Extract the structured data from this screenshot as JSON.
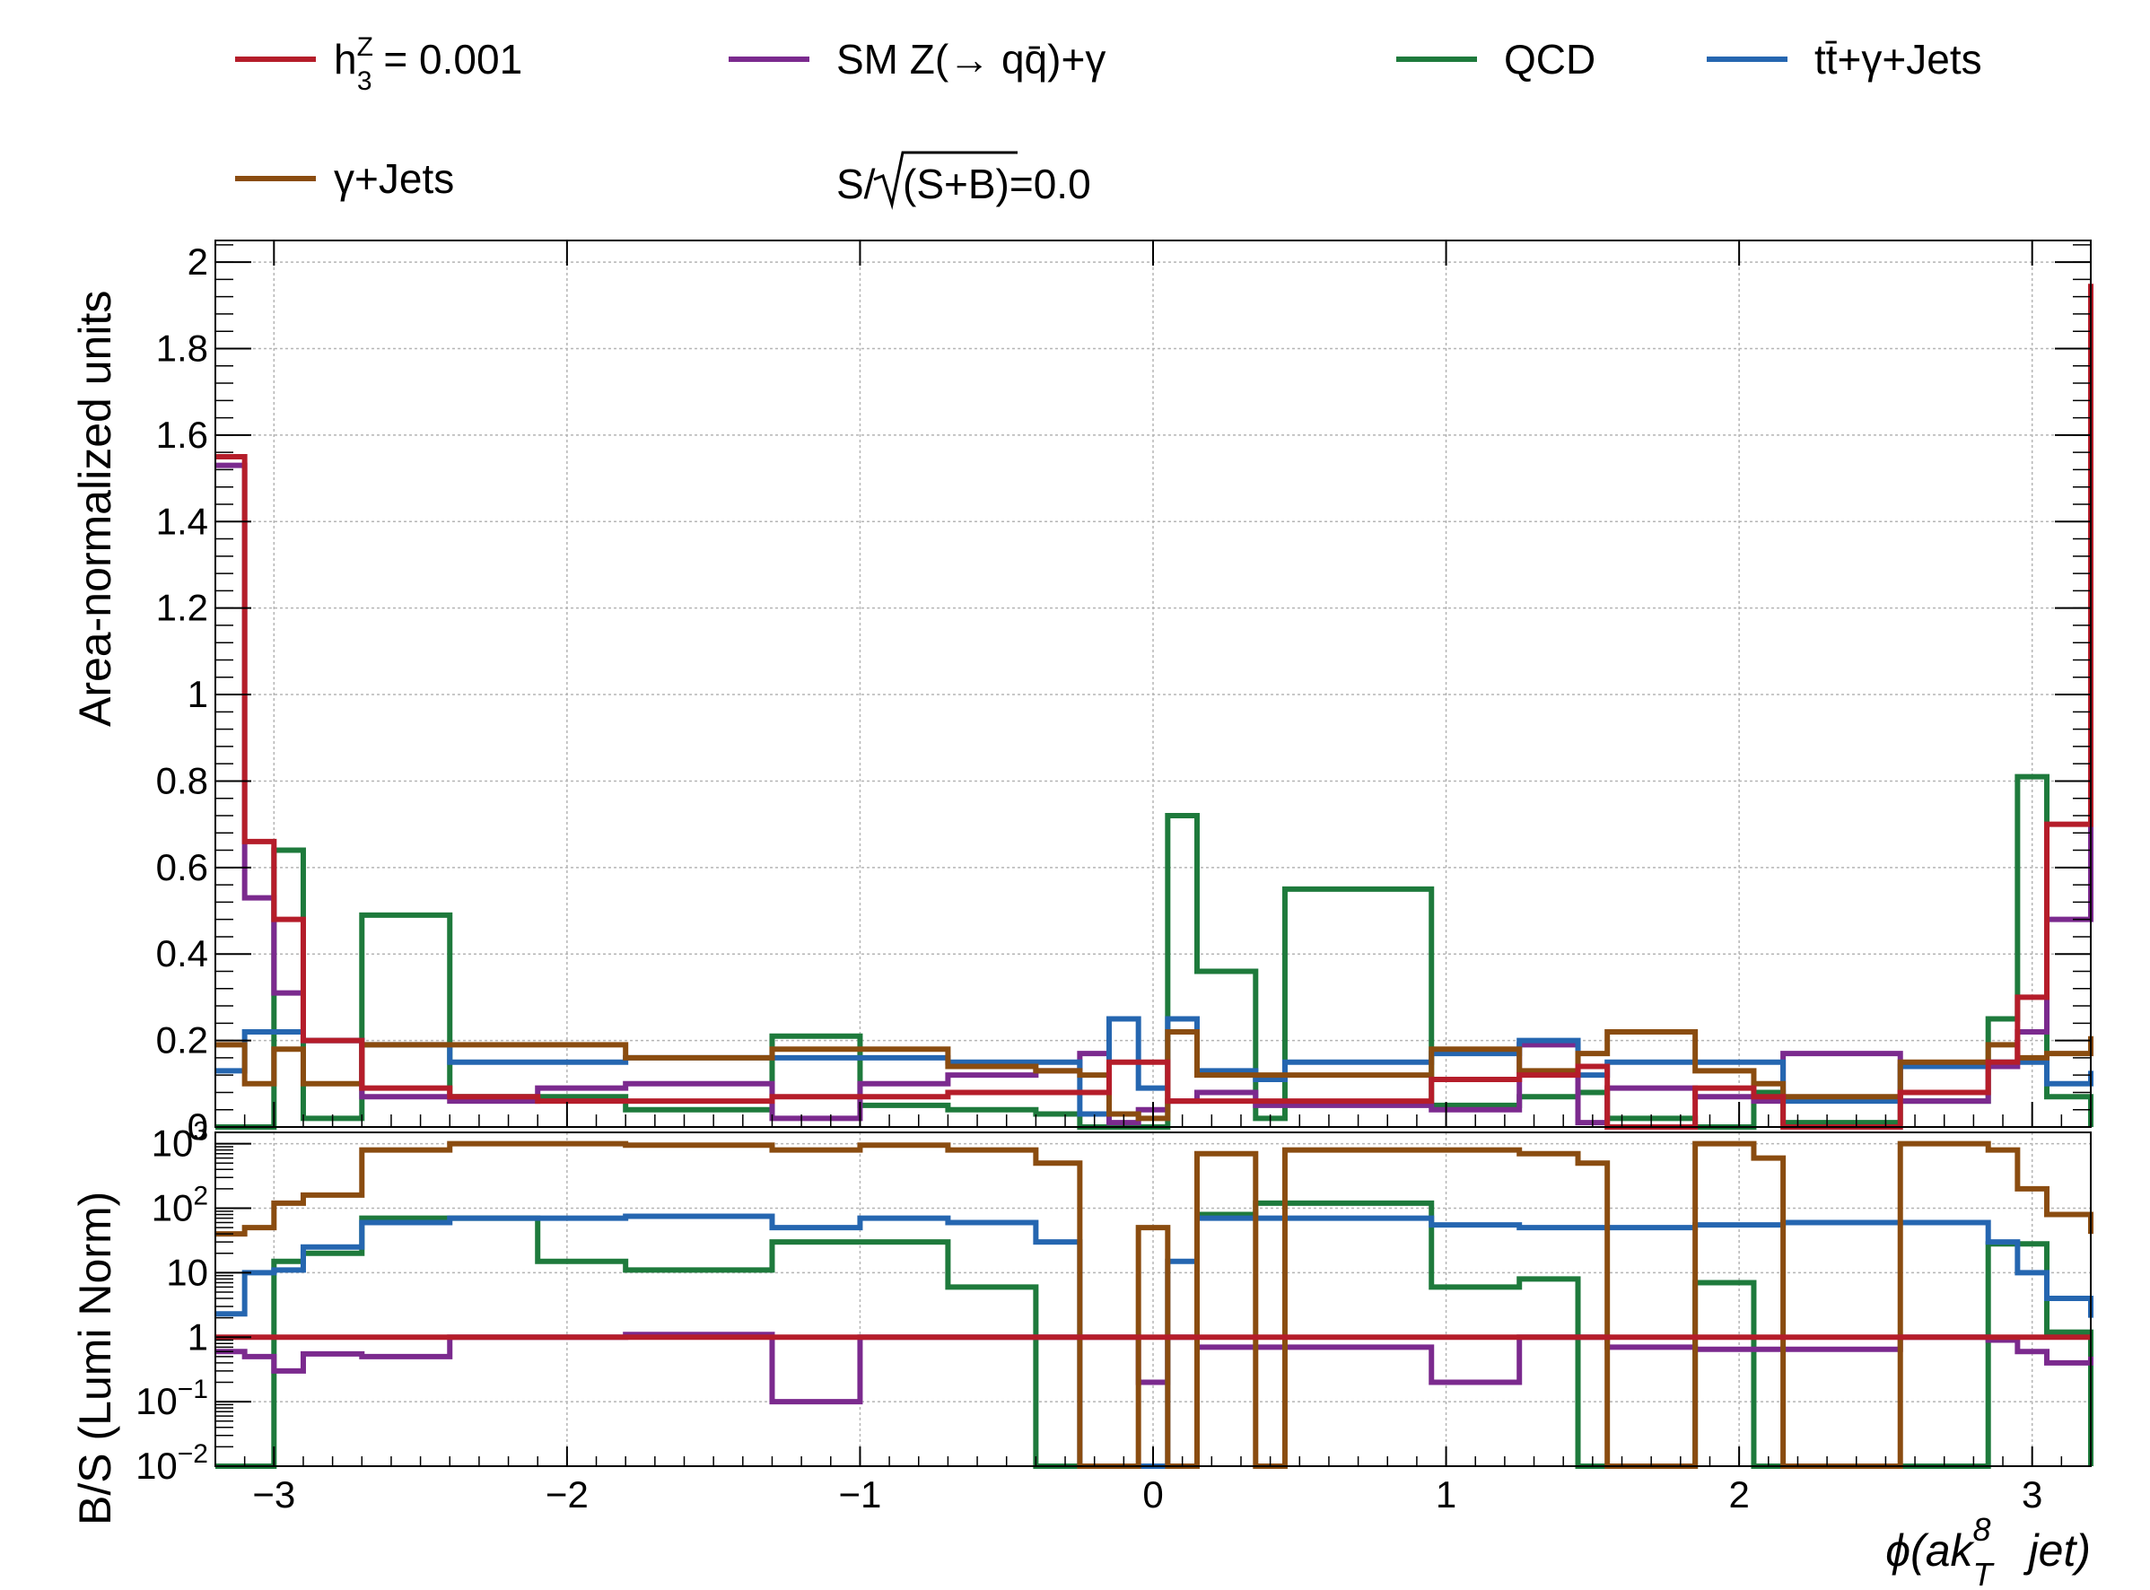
{
  "chart_data": {
    "type": "step-histogram",
    "legend": {
      "placement": "top",
      "entries": [
        {
          "series": "h3z",
          "label": "h₃ᶻ = 0.001",
          "label_main": "h",
          "label_sup": "Z",
          "label_sub": "3",
          "label_rest": " = 0.001"
        },
        {
          "series": "sm",
          "label": "SM Z(→ qq̄)+γ"
        },
        {
          "series": "qcd",
          "label": "QCD"
        },
        {
          "series": "ttg",
          "label": "tt̄+γ+Jets"
        },
        {
          "series": "gj",
          "label": "γ+Jets"
        }
      ],
      "significance": "S/√(S+B)=0.0",
      "significance_prefix": "S/",
      "significance_radicand": "(S+B)=0.0"
    },
    "x_axis": {
      "title": "ϕ(ak",
      "title_sup": "8",
      "title_sub": "T",
      "title_rest": "jet)",
      "xlim": [
        -3.2,
        3.2
      ],
      "ticks": [
        -3,
        -2,
        -1,
        0,
        1,
        2,
        3
      ],
      "tick_labels": [
        "−3",
        "−2",
        "−1",
        "0",
        "1",
        "2",
        "3"
      ],
      "grid": true
    },
    "x_edges": [
      -3.2,
      -3.1,
      -3.0,
      -2.9,
      -2.7,
      -2.4,
      -2.1,
      -1.8,
      -1.5,
      -1.3,
      -1.0,
      -0.7,
      -0.4,
      -0.25,
      -0.15,
      -0.05,
      0.05,
      0.15,
      0.35,
      0.45,
      0.95,
      1.25,
      1.45,
      1.55,
      1.85,
      2.05,
      2.15,
      2.55,
      2.85,
      2.95,
      3.05,
      3.2
    ],
    "top_panel": {
      "ylabel": "Area-normalized units",
      "ylim": [
        0,
        2.05
      ],
      "ticks": [
        0,
        0.2,
        0.4,
        0.6,
        0.8,
        1,
        1.2,
        1.4,
        1.6,
        1.8,
        2
      ],
      "tick_labels": [
        "0",
        "0.2",
        "0.4",
        "0.6",
        "0.8",
        "1",
        "1.2",
        "1.4",
        "1.6",
        "1.8",
        "2"
      ],
      "grid": true,
      "series": [
        {
          "id": "qcd",
          "color": "#1e7a3c",
          "values": [
            0,
            0,
            0.64,
            0.02,
            0.49,
            0.07,
            0.07,
            0.04,
            0.04,
            0.21,
            0.05,
            0.04,
            0.03,
            0,
            0,
            0,
            0.72,
            0.36,
            0.02,
            0.55,
            0.05,
            0.07,
            0.08,
            0.02,
            0,
            0.08,
            0.01,
            0.06,
            0.25,
            0.81,
            0.07,
            0
          ]
        },
        {
          "id": "sm",
          "color": "#7b2a8e",
          "values": [
            1.53,
            0.53,
            0.31,
            0.2,
            0.07,
            0.06,
            0.09,
            0.1,
            0.1,
            0.02,
            0.1,
            0.12,
            0.13,
            0.17,
            0.01,
            0.04,
            0.06,
            0.08,
            0.05,
            0.05,
            0.04,
            0.19,
            0.01,
            0.09,
            0.07,
            0.06,
            0.17,
            0.06,
            0.14,
            0.22,
            0.48,
            1.48
          ]
        },
        {
          "id": "ttg",
          "color": "#2566b0",
          "values": [
            0.13,
            0.22,
            0.22,
            0.2,
            0.19,
            0.15,
            0.15,
            0.16,
            0.16,
            0.16,
            0.16,
            0.15,
            0.15,
            0.03,
            0.25,
            0.09,
            0.25,
            0.13,
            0.11,
            0.15,
            0.17,
            0.2,
            0.12,
            0.15,
            0.15,
            0.15,
            0.06,
            0.14,
            0.15,
            0.15,
            0.1,
            0.13
          ]
        },
        {
          "id": "gj",
          "color": "#8a4c10",
          "values": [
            0.19,
            0.1,
            0.18,
            0.1,
            0.19,
            0.19,
            0.19,
            0.16,
            0.16,
            0.18,
            0.18,
            0.14,
            0.13,
            0.12,
            0.03,
            0.02,
            0.22,
            0.12,
            0.12,
            0.12,
            0.18,
            0.13,
            0.17,
            0.22,
            0.13,
            0.1,
            0.07,
            0.15,
            0.19,
            0.16,
            0.17,
            0.21
          ]
        },
        {
          "id": "h3z",
          "color": "#b51d2a",
          "values": [
            1.55,
            0.66,
            0.48,
            0.2,
            0.09,
            0.07,
            0.06,
            0.06,
            0.06,
            0.07,
            0.07,
            0.08,
            0.08,
            0.08,
            0.15,
            0.15,
            0.06,
            0.06,
            0.06,
            0.06,
            0.11,
            0.12,
            0.14,
            0,
            0.09,
            0.07,
            0,
            0.08,
            0.15,
            0.3,
            0.7,
            1.95
          ]
        }
      ]
    },
    "bottom_panel": {
      "ylabel": "B/S (Lumi Norm)",
      "scale": "log",
      "ylim": [
        0.01,
        1500
      ],
      "ticks": [
        0.01,
        0.1,
        1,
        10,
        100,
        1000
      ],
      "tick_labels": [
        {
          "base": "10",
          "exp": "−2"
        },
        {
          "base": "10",
          "exp": "−1"
        },
        {
          "base": "1",
          "exp": ""
        },
        {
          "base": "10",
          "exp": ""
        },
        {
          "base": "10",
          "exp": "2"
        },
        {
          "base": "10",
          "exp": "3"
        }
      ],
      "grid": true,
      "series": [
        {
          "id": "qcd",
          "color": "#1e7a3c",
          "values": [
            0,
            0,
            15,
            20,
            70,
            70,
            15,
            11,
            11,
            30,
            30,
            6,
            0,
            0,
            0,
            0,
            0,
            80,
            120,
            120,
            6,
            8,
            0,
            0,
            7,
            0,
            0,
            0,
            28,
            28,
            1.2,
            0
          ]
        },
        {
          "id": "sm",
          "color": "#7b2a8e",
          "values": [
            0.6,
            0.5,
            0.3,
            0.55,
            0.5,
            1,
            1,
            1.1,
            1.1,
            0.1,
            1,
            1,
            1,
            1,
            1,
            0.2,
            1,
            0.7,
            0.7,
            0.7,
            0.2,
            1,
            1,
            0.7,
            0.65,
            0.65,
            0.65,
            1,
            0.9,
            0.6,
            0.4,
            0.5
          ]
        },
        {
          "id": "ttg",
          "color": "#2566b0",
          "values": [
            2.3,
            10,
            11,
            25,
            60,
            70,
            70,
            75,
            75,
            50,
            70,
            60,
            30,
            0,
            0,
            0,
            15,
            70,
            70,
            70,
            55,
            50,
            50,
            50,
            55,
            55,
            60,
            60,
            30,
            10,
            4,
            2
          ]
        },
        {
          "id": "gj",
          "color": "#8a4c10",
          "values": [
            40,
            50,
            120,
            160,
            800,
            1000,
            1000,
            950,
            950,
            800,
            950,
            800,
            500,
            0,
            0,
            50,
            0,
            700,
            0,
            800,
            800,
            700,
            500,
            0,
            1000,
            600,
            0,
            1000,
            800,
            200,
            80,
            40
          ]
        },
        {
          "id": "h3z",
          "color": "#b51d2a",
          "values": [
            1,
            1,
            1,
            1,
            1,
            1,
            1,
            1,
            1,
            1,
            1,
            1,
            1,
            1,
            1,
            1,
            1,
            1,
            1,
            1,
            1,
            1,
            1,
            1,
            1,
            1,
            1,
            1,
            1,
            1,
            1,
            1
          ]
        }
      ]
    }
  }
}
